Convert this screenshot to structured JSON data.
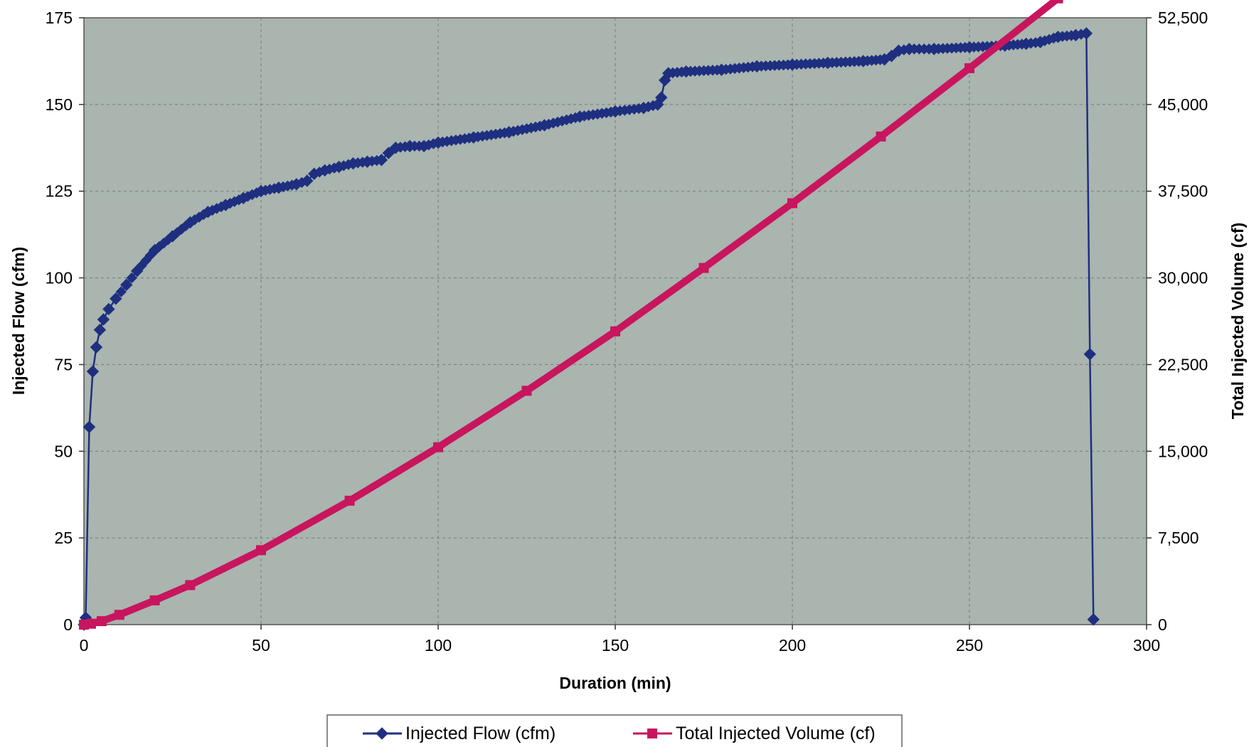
{
  "chart_data": {
    "type": "line",
    "title": "",
    "xlabel": "Duration (min)",
    "ylabel": "Injected Flow (cfm)",
    "y2label": "Total Injected Volume (cf)",
    "xlim": [
      0,
      300
    ],
    "ylim": [
      0,
      175
    ],
    "y2lim": [
      0,
      52500
    ],
    "xticks": [
      "0",
      "50",
      "100",
      "150",
      "200",
      "250",
      "300"
    ],
    "yticks": [
      "0",
      "25",
      "50",
      "75",
      "100",
      "125",
      "150",
      "175"
    ],
    "y2ticks": [
      "0",
      "7,500",
      "15,000",
      "22,500",
      "30,000",
      "37,500",
      "45,000",
      "52,500"
    ],
    "grid": true,
    "plot_background": "#a9b5ae",
    "legend_position": "bottom",
    "series": [
      {
        "name": "Injected Flow (cfm)",
        "axis": "left",
        "color": "#1f2f80",
        "marker": "diamond",
        "x": [
          0,
          0.5,
          1.5,
          2.5,
          3.5,
          4.5,
          5.5,
          7,
          9,
          12,
          15,
          20,
          25,
          30,
          35,
          40,
          45,
          50,
          55,
          60,
          63,
          65,
          68,
          72,
          76,
          80,
          84,
          86,
          88,
          92,
          96,
          100,
          110,
          120,
          130,
          140,
          150,
          158,
          162,
          163,
          164,
          165,
          170,
          180,
          190,
          200,
          210,
          220,
          226,
          228,
          230,
          233,
          240,
          250,
          260,
          266,
          270,
          275,
          280,
          283,
          284,
          285
        ],
        "y": [
          0,
          2,
          57,
          73,
          80,
          85,
          88,
          91,
          94,
          98,
          102,
          108,
          112,
          116,
          119,
          121,
          123,
          125,
          126,
          127,
          128,
          130,
          131,
          132,
          133,
          133.5,
          134,
          136,
          137.5,
          138,
          138,
          139,
          140.5,
          142,
          144,
          146.5,
          148,
          149,
          150,
          152,
          157,
          159,
          159.5,
          160,
          161,
          161.5,
          162,
          162.5,
          163,
          164,
          165.5,
          166,
          166,
          166.5,
          167,
          167.5,
          168,
          169.5,
          170,
          170.5,
          78,
          1.5
        ]
      },
      {
        "name": "Total Injected Volume (cf)",
        "axis": "right",
        "color": "#c8155e",
        "marker": "square",
        "x": [
          0,
          2,
          5,
          10,
          20,
          30,
          50,
          75,
          100,
          125,
          150,
          175,
          200,
          225,
          250,
          275,
          285
        ],
        "y": [
          0,
          80,
          300,
          850,
          2100,
          3420,
          6440,
          10720,
          15350,
          20230,
          25370,
          30860,
          36460,
          42230,
          48140,
          54180,
          56650
        ]
      }
    ]
  }
}
